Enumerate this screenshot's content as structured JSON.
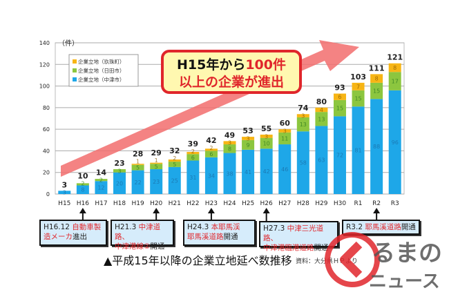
{
  "chart_data": {
    "type": "bar",
    "stacked": true,
    "ylabel": "（件）",
    "ylim": [
      0,
      140
    ],
    "yticks": [
      0,
      20,
      40,
      60,
      80,
      100,
      120,
      140
    ],
    "grid": true,
    "legend_placement": "top-left",
    "categories": [
      "H15",
      "H16",
      "H17",
      "H18",
      "H19",
      "H20",
      "H21",
      "H22",
      "H23",
      "H24",
      "H25",
      "H26",
      "H27",
      "H28",
      "H29",
      "H30",
      "R1",
      "R2",
      "R3"
    ],
    "series": [
      {
        "name": "企業立地（中津市）",
        "color": "#1ea7e8",
        "values": [
          3,
          8,
          12,
          20,
          22,
          23,
          25,
          31,
          34,
          38,
          41,
          42,
          46,
          58,
          63,
          72,
          81,
          88,
          96
        ]
      },
      {
        "name": "企業立地（日田市）",
        "color": "#8cc63f",
        "values": [
          0,
          2,
          2,
          3,
          5,
          5,
          5,
          6,
          6,
          8,
          9,
          10,
          11,
          13,
          13,
          15,
          15,
          15,
          17
        ]
      },
      {
        "name": "企業立地（玖珠町）",
        "color": "#f7b515",
        "values": [
          0,
          0,
          0,
          0,
          1,
          1,
          2,
          2,
          2,
          3,
          3,
          3,
          3,
          3,
          4,
          6,
          7,
          8,
          8
        ]
      }
    ],
    "totals": [
      3,
      10,
      14,
      23,
      28,
      29,
      32,
      39,
      42,
      49,
      53,
      55,
      60,
      74,
      80,
      93,
      103,
      111,
      121
    ],
    "legend_order": [
      "企業立地（玖珠町）",
      "企業立地（日田市）",
      "企業立地（中津市）"
    ]
  },
  "callout": {
    "line1_black": "H15年から",
    "line1_red": "100件",
    "line2": "以上の企業が進出"
  },
  "annotations": [
    {
      "category": "H16",
      "date": "H16.12 ",
      "red": "自動車製",
      "line2_red": "造メーカ",
      "line2_black": "進出"
    },
    {
      "category": "H20",
      "date": "H21.3 ",
      "red": "中津道路、",
      "line2_red": "中津港線②",
      "line2_black": "開通"
    },
    {
      "category": "H23",
      "date": "H24.3 ",
      "red": "本耶馬渓",
      "line2_red": "耶馬溪道路",
      "line2_black": "開通"
    },
    {
      "category": "H26",
      "date": "H27.3 ",
      "red": "中津三光道路、",
      "line2_red": "中津港臨港道路",
      "line2_black": "開通"
    },
    {
      "category": "R2",
      "date": "R3.2 ",
      "red": "耶馬溪道路",
      "line2_red": "",
      "line2_black": "開通"
    }
  ],
  "caption": "▲平成15年以降の企業立地延べ数推移",
  "source": "資料：大分県ＨＰより",
  "logo": {
    "text": "くるまのニュース",
    "color": "#e0262b"
  }
}
